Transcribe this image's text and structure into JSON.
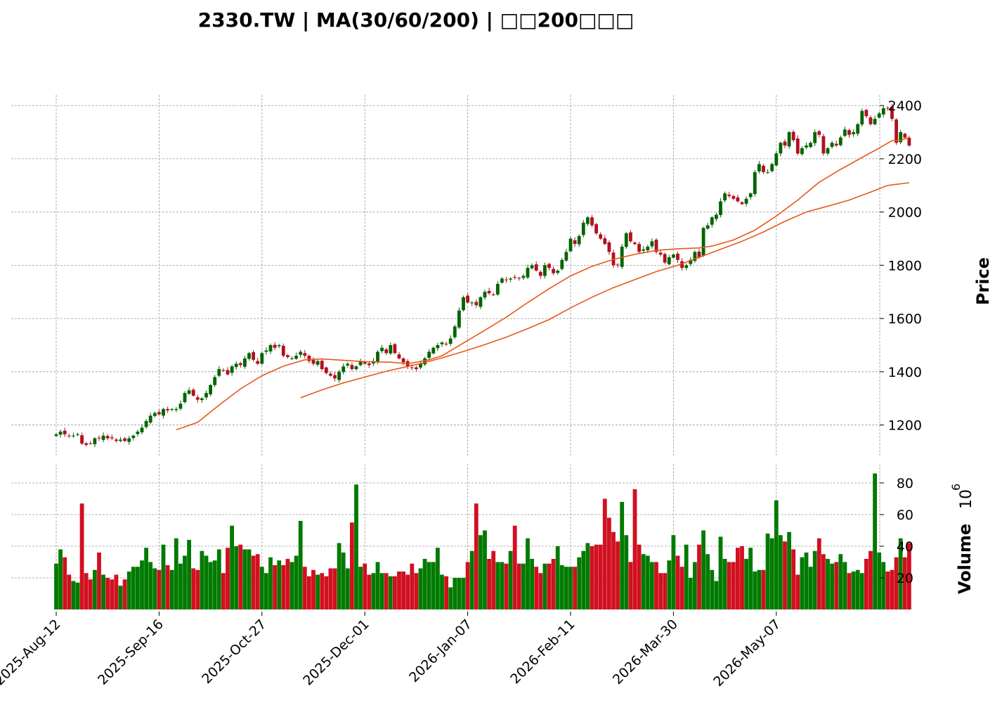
{
  "chart_data": {
    "type": "candlestick",
    "title": "2330.TW  |  MA(30/60/200)  |  □□200□□□",
    "ylabel": "Price",
    "volume_label": "Volume",
    "volume_exponent": "6",
    "volume_base": "10",
    "ylim": [
      1080,
      2440
    ],
    "yticks": [
      1200,
      1400,
      1600,
      1800,
      2000,
      2200,
      2400
    ],
    "volume_ylim": [
      0,
      92
    ],
    "volume_yticks": [
      20,
      40,
      60,
      80
    ],
    "xtick_labels": [
      "2025-Aug-12",
      "2025-Sep-16",
      "2025-Oct-27",
      "2025-Dec-01",
      "2026-Jan-07",
      "2026-Feb-11",
      "2026-Mar-30",
      "2026-May-07"
    ],
    "xtick_indices": [
      0,
      24,
      48,
      72,
      96,
      120,
      144,
      168
    ],
    "grid": true,
    "up_color": "#006400",
    "down_color": "#b01020",
    "ma_color": "#e8581a",
    "close": [
      1165,
      1175,
      1165,
      1160,
      1160,
      1165,
      1130,
      1125,
      1130,
      1150,
      1150,
      1160,
      1150,
      1150,
      1140,
      1145,
      1140,
      1150,
      1160,
      1175,
      1190,
      1215,
      1235,
      1245,
      1240,
      1260,
      1255,
      1260,
      1260,
      1280,
      1320,
      1330,
      1310,
      1295,
      1300,
      1320,
      1350,
      1380,
      1410,
      1405,
      1390,
      1420,
      1430,
      1425,
      1450,
      1470,
      1445,
      1430,
      1470,
      1480,
      1500,
      1490,
      1500,
      1460,
      1455,
      1450,
      1460,
      1475,
      1460,
      1440,
      1430,
      1440,
      1410,
      1395,
      1385,
      1375,
      1400,
      1420,
      1430,
      1410,
      1420,
      1440,
      1430,
      1425,
      1440,
      1475,
      1490,
      1470,
      1500,
      1470,
      1450,
      1435,
      1420,
      1415,
      1410,
      1430,
      1450,
      1475,
      1490,
      1500,
      1510,
      1505,
      1525,
      1570,
      1630,
      1680,
      1660,
      1660,
      1650,
      1680,
      1700,
      1695,
      1690,
      1730,
      1750,
      1745,
      1750,
      1755,
      1750,
      1760,
      1790,
      1800,
      1780,
      1760,
      1800,
      1790,
      1770,
      1780,
      1820,
      1850,
      1900,
      1880,
      1910,
      1960,
      1980,
      1950,
      1920,
      1900,
      1880,
      1850,
      1800,
      1800,
      1870,
      1920,
      1890,
      1880,
      1850,
      1860,
      1870,
      1890,
      1850,
      1840,
      1810,
      1830,
      1840,
      1820,
      1790,
      1800,
      1820,
      1850,
      1830,
      1940,
      1950,
      1980,
      1990,
      2040,
      2070,
      2060,
      2050,
      2040,
      2030,
      2050,
      2070,
      2150,
      2180,
      2150,
      2150,
      2180,
      2220,
      2260,
      2250,
      2300,
      2270,
      2220,
      2240,
      2250,
      2260,
      2300,
      2290,
      2220,
      2240,
      2260,
      2250,
      2280,
      2310,
      2290,
      2300,
      2330,
      2380,
      2360,
      2330,
      2350,
      2370,
      2390,
      2390,
      2350,
      2260,
      2300,
      2280,
      2250
    ],
    "ma30": [
      [
        28,
        1182
      ],
      [
        33,
        1210
      ],
      [
        38,
        1275
      ],
      [
        43,
        1336
      ],
      [
        48,
        1385
      ],
      [
        53,
        1421
      ],
      [
        58,
        1445
      ],
      [
        62,
        1448
      ],
      [
        68,
        1442
      ],
      [
        72,
        1438
      ],
      [
        78,
        1436
      ],
      [
        82,
        1430
      ],
      [
        87,
        1445
      ],
      [
        90,
        1460
      ],
      [
        95,
        1508
      ],
      [
        100,
        1556
      ],
      [
        105,
        1605
      ],
      [
        110,
        1660
      ],
      [
        115,
        1712
      ],
      [
        120,
        1760
      ],
      [
        125,
        1796
      ],
      [
        130,
        1822
      ],
      [
        135,
        1841
      ],
      [
        140,
        1856
      ],
      [
        145,
        1862
      ],
      [
        150,
        1865
      ],
      [
        153,
        1872
      ],
      [
        158,
        1895
      ],
      [
        163,
        1932
      ],
      [
        168,
        1985
      ],
      [
        173,
        2045
      ],
      [
        178,
        2112
      ],
      [
        183,
        2160
      ],
      [
        188,
        2205
      ],
      [
        192,
        2240
      ],
      [
        195,
        2268
      ],
      [
        197,
        2270
      ],
      [
        199,
        2280
      ]
    ],
    "ma60": [
      [
        57,
        1302
      ],
      [
        62,
        1332
      ],
      [
        67,
        1358
      ],
      [
        72,
        1380
      ],
      [
        77,
        1402
      ],
      [
        82,
        1420
      ],
      [
        86,
        1435
      ],
      [
        90,
        1452
      ],
      [
        95,
        1476
      ],
      [
        100,
        1502
      ],
      [
        105,
        1530
      ],
      [
        110,
        1562
      ],
      [
        115,
        1596
      ],
      [
        120,
        1640
      ],
      [
        125,
        1680
      ],
      [
        130,
        1716
      ],
      [
        135,
        1746
      ],
      [
        140,
        1776
      ],
      [
        145,
        1800
      ],
      [
        150,
        1830
      ],
      [
        155,
        1860
      ],
      [
        160,
        1890
      ],
      [
        165,
        1925
      ],
      [
        170,
        1965
      ],
      [
        175,
        2000
      ],
      [
        180,
        2022
      ],
      [
        185,
        2045
      ],
      [
        190,
        2075
      ],
      [
        194,
        2100
      ],
      [
        199,
        2110
      ]
    ],
    "volume": [
      29,
      38,
      33,
      22,
      18,
      17,
      67,
      23,
      19,
      25,
      36,
      22,
      20,
      19,
      22,
      15,
      19,
      24,
      27,
      27,
      31,
      39,
      30,
      26,
      25,
      41,
      28,
      25,
      45,
      29,
      34,
      44,
      26,
      25,
      37,
      34,
      30,
      31,
      38,
      23,
      39,
      53,
      40,
      41,
      38,
      38,
      34,
      35,
      27,
      23,
      33,
      28,
      31,
      28,
      32,
      30,
      34,
      56,
      27,
      21,
      25,
      22,
      23,
      21,
      26,
      26,
      42,
      36,
      26,
      55,
      79,
      27,
      29,
      22,
      23,
      30,
      23,
      23,
      21,
      21,
      24,
      24,
      22,
      29,
      23,
      26,
      32,
      30,
      30,
      39,
      22,
      21,
      14,
      20,
      20,
      20,
      30,
      37,
      67,
      47,
      50,
      32,
      37,
      30,
      30,
      29,
      37,
      53,
      29,
      29,
      45,
      32,
      27,
      23,
      29,
      29,
      32,
      40,
      28,
      27,
      27,
      27,
      33,
      37,
      42,
      40,
      41,
      41,
      70,
      58,
      49,
      43,
      68,
      47,
      30,
      76,
      41,
      35,
      34,
      30,
      30,
      23,
      23,
      31,
      47,
      34,
      27,
      41,
      20,
      30,
      41,
      50,
      35,
      25,
      18,
      46,
      32,
      30,
      30,
      39,
      40,
      32,
      39,
      24,
      25,
      25,
      48,
      45,
      69,
      47,
      43,
      49,
      38,
      22,
      33,
      36,
      27,
      37,
      45,
      35,
      32,
      29,
      30,
      35,
      30,
      23,
      24,
      25,
      23,
      32,
      37,
      86,
      36,
      30,
      24,
      25,
      33,
      45,
      33,
      42
    ]
  }
}
